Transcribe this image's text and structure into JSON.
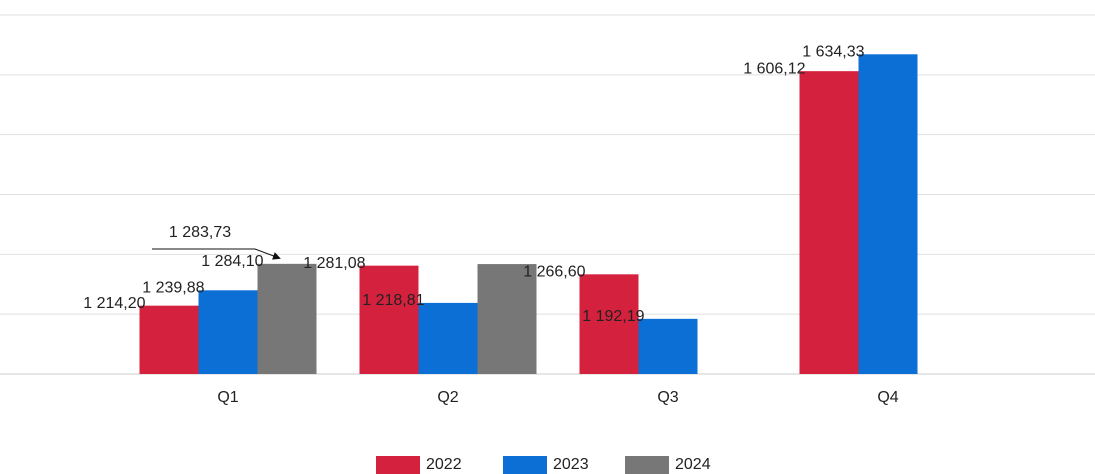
{
  "chart_data": {
    "type": "bar",
    "categories": [
      "Q1",
      "Q2",
      "Q3",
      "Q4"
    ],
    "series": [
      {
        "name": "2022",
        "color": "#d4213d",
        "values": [
          1214.2,
          1281.08,
          1266.6,
          1606.12
        ],
        "value_labels": [
          "1 214,20",
          "1 281,08",
          "1 266,60",
          "1 606,12"
        ]
      },
      {
        "name": "2023",
        "color": "#0b6fd6",
        "values": [
          1239.88,
          1218.81,
          1192.19,
          1634.33
        ],
        "value_labels": [
          "1 239,88",
          "1 218,81",
          "1 192,19",
          "1 634,33"
        ]
      },
      {
        "name": "2024",
        "color": "#777777",
        "values": [
          1284.1,
          1283.73,
          null,
          null
        ],
        "value_labels": [
          "1 284,10",
          "1 283,73",
          null,
          null
        ]
      }
    ],
    "ylim": [
      1100,
      1700
    ],
    "yticks": [
      1100,
      1200,
      1300,
      1400,
      1500,
      1600,
      1700
    ],
    "grid": true,
    "legend": "bottom"
  }
}
